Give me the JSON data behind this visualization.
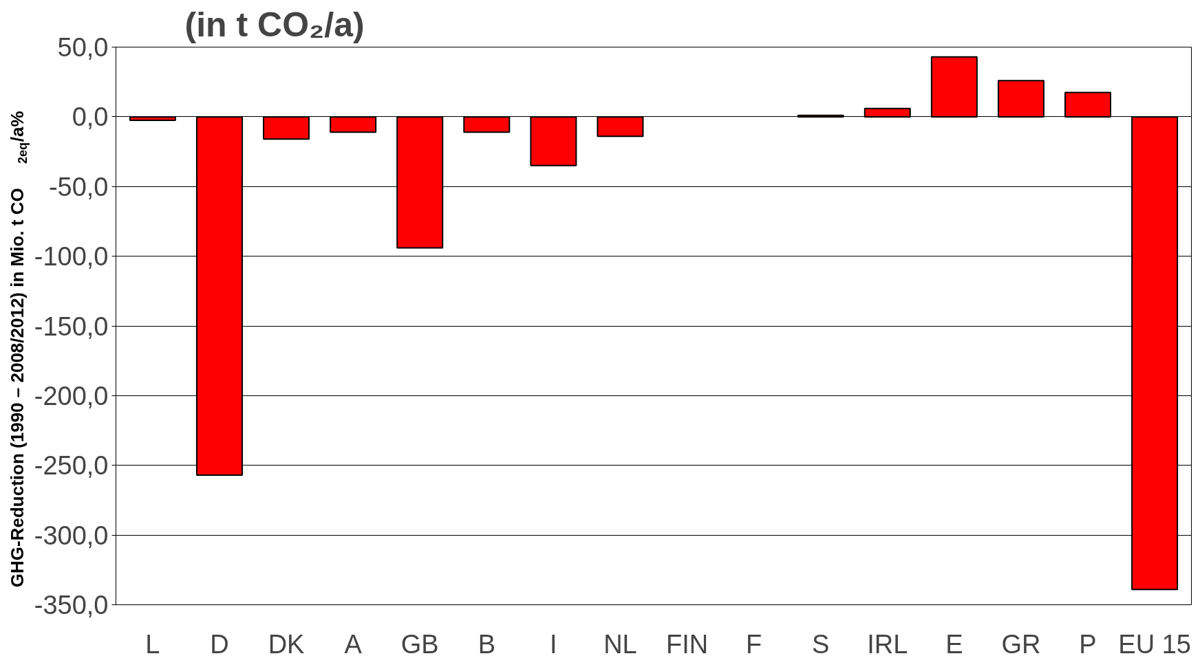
{
  "chart_data": {
    "type": "bar",
    "title": "(in t CO₂/a)",
    "ylabel": "GHG-Reduction (1990 – 2008/2012) in Mio. t CO$_{2eq}$/a%",
    "categories": [
      "L",
      "D",
      "DK",
      "A",
      "GB",
      "B",
      "I",
      "NL",
      "FIN",
      "F",
      "S",
      "IRL",
      "E",
      "GR",
      "P",
      "EU 15"
    ],
    "values": [
      -2.5,
      -257,
      -16,
      -11,
      -94,
      -11,
      -35,
      -14,
      null,
      null,
      1,
      6,
      43,
      26,
      17.5,
      -339
    ],
    "color": "#ff0000",
    "ylim": [
      -350,
      50
    ],
    "yticks": [
      {
        "value": -350,
        "label": "-350,0"
      },
      {
        "value": -300,
        "label": "-300,0"
      },
      {
        "value": -250,
        "label": "-250,0"
      },
      {
        "value": -200,
        "label": "-200,0"
      },
      {
        "value": -150,
        "label": "-150,0"
      },
      {
        "value": -100,
        "label": "-100,0"
      },
      {
        "value": -50,
        "label": "-50,0"
      },
      {
        "value": 0,
        "label": "0,0"
      },
      {
        "value": 50,
        "label": "50,0"
      }
    ],
    "grid": "y"
  }
}
